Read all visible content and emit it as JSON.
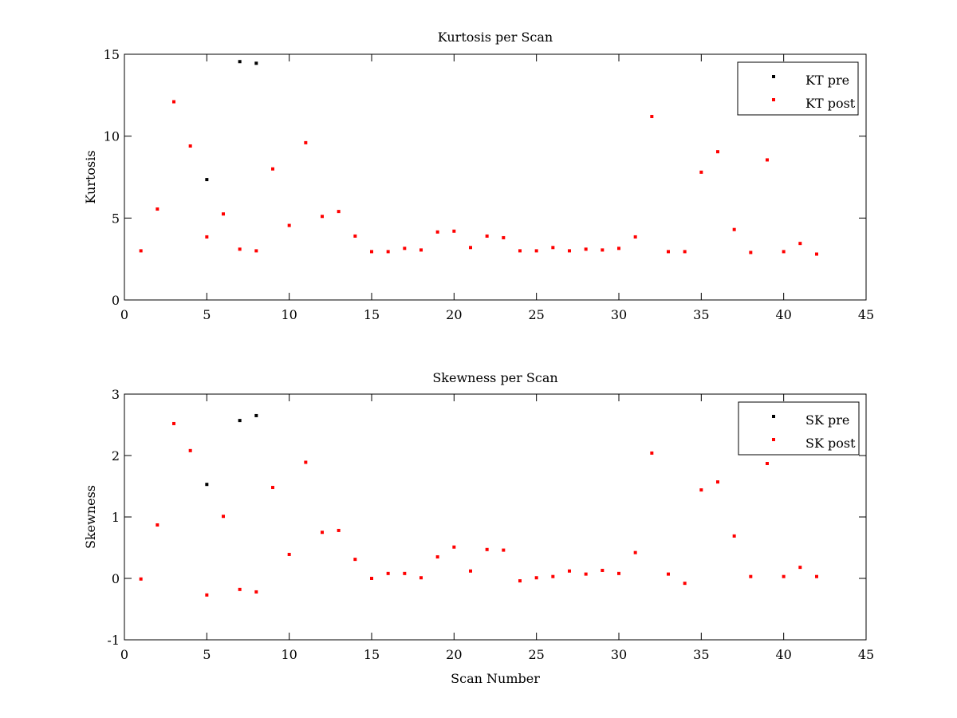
{
  "chart_data": [
    {
      "type": "scatter",
      "title": "Kurtosis per Scan",
      "xlabel": "",
      "ylabel": "Kurtosis",
      "xlim": [
        0,
        45
      ],
      "ylim": [
        0,
        15
      ],
      "xticks": [
        0,
        5,
        10,
        15,
        20,
        25,
        30,
        35,
        40,
        45
      ],
      "yticks": [
        0,
        5,
        10,
        15
      ],
      "grid": false,
      "legend": "top-right",
      "series": [
        {
          "name": "KT pre",
          "color": "#000000",
          "x": [
            5,
            7,
            8
          ],
          "y": [
            7.35,
            14.55,
            14.45
          ]
        },
        {
          "name": "KT post",
          "color": "#ff0000",
          "x": [
            1,
            2,
            3,
            4,
            5,
            6,
            7,
            8,
            9,
            10,
            11,
            12,
            13,
            14,
            15,
            16,
            17,
            18,
            19,
            20,
            21,
            22,
            23,
            24,
            25,
            26,
            27,
            28,
            29,
            30,
            31,
            32,
            33,
            34,
            35,
            36,
            37,
            38,
            39,
            40,
            41,
            42
          ],
          "y": [
            3.0,
            5.55,
            12.1,
            9.4,
            3.85,
            5.25,
            3.1,
            3.0,
            8.0,
            4.55,
            9.6,
            5.1,
            5.4,
            3.9,
            2.95,
            2.95,
            3.15,
            3.05,
            4.15,
            4.2,
            3.2,
            3.9,
            3.8,
            3.0,
            3.0,
            3.2,
            3.0,
            3.1,
            3.05,
            3.15,
            3.85,
            11.2,
            2.95,
            2.95,
            7.8,
            9.05,
            4.3,
            2.9,
            8.55,
            2.95,
            3.45,
            2.8
          ]
        }
      ]
    },
    {
      "type": "scatter",
      "title": "Skewness per Scan",
      "xlabel": "Scan Number",
      "ylabel": "Skewness",
      "xlim": [
        0,
        45
      ],
      "ylim": [
        -1,
        3
      ],
      "xticks": [
        0,
        5,
        10,
        15,
        20,
        25,
        30,
        35,
        40,
        45
      ],
      "yticks": [
        -1,
        0,
        1,
        2,
        3
      ],
      "grid": false,
      "legend": "top-right",
      "series": [
        {
          "name": "SK pre",
          "color": "#000000",
          "x": [
            5,
            7,
            8
          ],
          "y": [
            1.53,
            2.57,
            2.65
          ]
        },
        {
          "name": "SK post",
          "color": "#ff0000",
          "x": [
            1,
            2,
            3,
            4,
            5,
            6,
            7,
            8,
            9,
            10,
            11,
            12,
            13,
            14,
            15,
            16,
            17,
            18,
            19,
            20,
            21,
            22,
            23,
            24,
            25,
            26,
            27,
            28,
            29,
            30,
            31,
            32,
            33,
            34,
            35,
            36,
            37,
            38,
            39,
            40,
            41,
            42
          ],
          "y": [
            -0.01,
            0.87,
            2.52,
            2.08,
            -0.27,
            1.01,
            -0.18,
            -0.22,
            1.48,
            0.39,
            1.89,
            0.75,
            0.78,
            0.31,
            0.0,
            0.08,
            0.08,
            0.01,
            0.35,
            0.51,
            0.12,
            0.47,
            0.46,
            -0.04,
            0.01,
            0.03,
            0.12,
            0.07,
            0.13,
            0.08,
            0.42,
            2.04,
            0.07,
            -0.08,
            1.44,
            1.57,
            0.69,
            0.03,
            1.87,
            0.03,
            0.18,
            0.03
          ]
        }
      ]
    }
  ]
}
